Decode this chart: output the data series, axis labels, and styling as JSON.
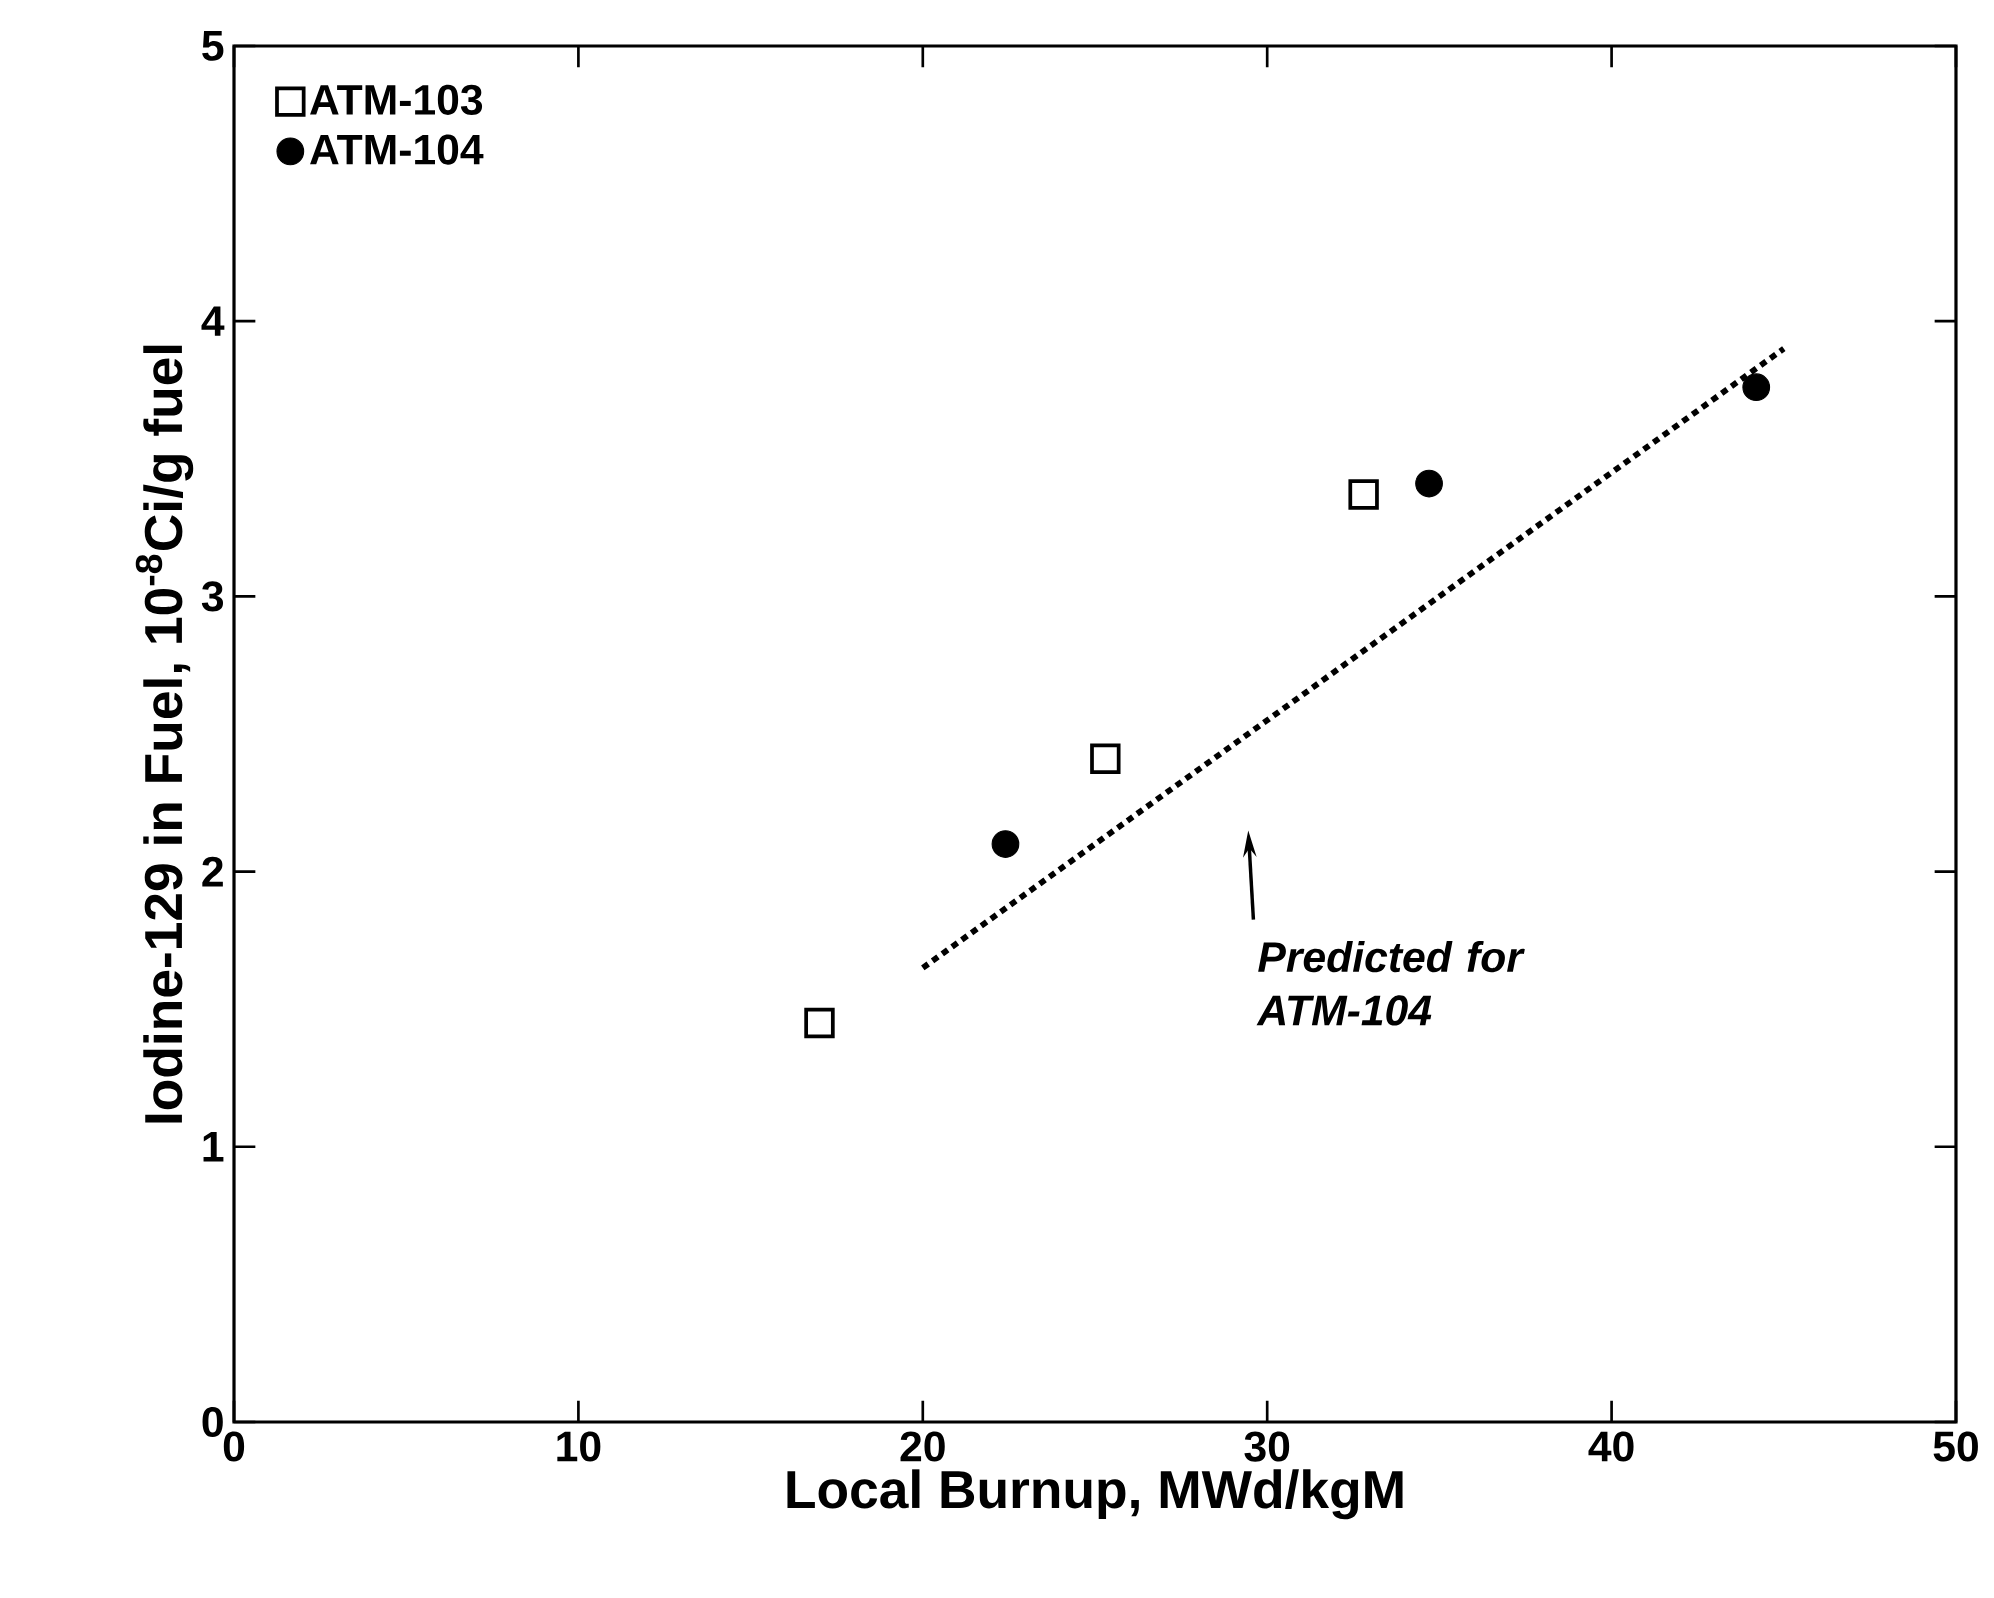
{
  "chart_data": {
    "type": "scatter",
    "xlabel": "Local Burnup, MWd/kgM",
    "ylabel": "Iodine-129 in Fuel, 10$^{-8}$Ci/g fuel",
    "xlim": [
      0,
      50
    ],
    "ylim": [
      0,
      5
    ],
    "xticks": [
      0,
      10,
      20,
      30,
      40,
      50
    ],
    "yticks": [
      0,
      1,
      2,
      3,
      4,
      5
    ],
    "grid": false,
    "legend": "top left",
    "series": [
      {
        "name": "ATM-103",
        "marker": "square",
        "color": "#000000",
        "x": [
          17.0,
          25.3,
          32.8
        ],
        "values": [
          1.45,
          2.41,
          3.37
        ]
      },
      {
        "name": "ATM-104",
        "marker": "circle",
        "color": "#000000",
        "x": [
          22.4,
          34.7,
          44.2
        ],
        "values": [
          2.1,
          3.41,
          3.76
        ]
      },
      {
        "type": "line",
        "line_style": "dotted",
        "marker": "none",
        "color": "#000000",
        "x": [
          20,
          45
        ],
        "values": [
          1.65,
          3.9
        ]
      }
    ],
    "annotations": [
      "Predicted for ATM-104"
    ]
  }
}
